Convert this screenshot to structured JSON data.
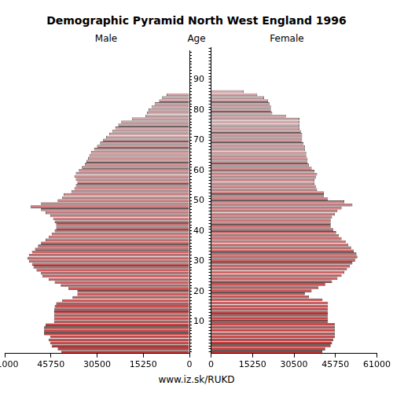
{
  "chart_data": {
    "type": "bar",
    "orientation": "horizontal",
    "title": "Demographic Pyramid North West England 1996",
    "ylabel": "Age",
    "source": "www.iz.sk/RUKD",
    "categories": [
      null,
      null,
      null,
      null,
      null,
      null,
      null,
      null,
      null,
      null,
      10,
      null,
      null,
      null,
      null,
      null,
      null,
      null,
      null,
      null,
      20,
      null,
      null,
      null,
      null,
      null,
      null,
      null,
      null,
      null,
      30,
      null,
      null,
      null,
      null,
      null,
      null,
      null,
      null,
      null,
      40,
      null,
      null,
      null,
      null,
      null,
      null,
      null,
      null,
      null,
      50,
      null,
      null,
      null,
      null,
      null,
      null,
      null,
      null,
      null,
      60,
      null,
      null,
      null,
      null,
      null,
      null,
      null,
      null,
      null,
      70,
      null,
      null,
      null,
      null,
      null,
      null,
      null,
      null,
      null,
      80,
      null,
      null,
      null,
      null,
      null,
      null,
      null,
      null,
      null,
      90,
      null,
      null,
      null,
      null,
      null,
      null,
      null,
      null,
      null
    ],
    "xlim": [
      0,
      61000
    ],
    "xticks": [
      0,
      15250,
      30500,
      45750,
      61000
    ],
    "grid": false,
    "series": [
      {
        "name": "Male",
        "color": "#cc3838",
        "values": [
          42300,
          43500,
          45500,
          46000,
          46500,
          46000,
          48000,
          48000,
          48000,
          47500,
          44700,
          44700,
          44700,
          44700,
          44700,
          44500,
          44000,
          42000,
          38600,
          37000,
          37000,
          40000,
          42500,
          44500,
          46500,
          48500,
          49000,
          50500,
          51500,
          52000,
          53000,
          53500,
          53000,
          52000,
          51000,
          50000,
          49000,
          47500,
          46500,
          45500,
          44500,
          44000,
          44000,
          44500,
          45000,
          46000,
          47500,
          49000,
          52500,
          49000,
          43500,
          42000,
          41500,
          39000,
          38000,
          37500,
          37000,
          37500,
          38000,
          37500,
          36500,
          35500,
          34500,
          34000,
          33500,
          33000,
          32500,
          31500,
          30500,
          29500,
          28500,
          27500,
          26500,
          25500,
          24500,
          23500,
          22500,
          19000,
          14500,
          14000,
          13500,
          12500,
          11500,
          10000,
          9000,
          7500,
          null,
          null,
          null,
          null,
          null,
          null,
          null,
          null,
          null,
          null,
          null,
          null,
          null,
          null
        ]
      },
      {
        "name": "Female",
        "color": "#cc3838",
        "values": [
          40900,
          42000,
          44000,
          44500,
          45000,
          45500,
          45500,
          45500,
          45500,
          45500,
          43000,
          43000,
          43000,
          43000,
          43000,
          43000,
          43000,
          41000,
          36000,
          34500,
          37000,
          39500,
          42000,
          44500,
          46500,
          48000,
          49000,
          50000,
          51000,
          52000,
          53000,
          53800,
          53500,
          52500,
          51500,
          50500,
          49500,
          48000,
          47000,
          46000,
          45000,
          44000,
          44000,
          44000,
          44500,
          45500,
          46500,
          48000,
          52000,
          49000,
          43000,
          41500,
          41500,
          39000,
          38500,
          38000,
          38000,
          38500,
          39000,
          38000,
          37000,
          36000,
          35500,
          35500,
          35000,
          35000,
          34500,
          34500,
          34000,
          33500,
          33500,
          33500,
          33000,
          32500,
          32500,
          32500,
          32500,
          27500,
          22500,
          22000,
          22000,
          21500,
          21000,
          19500,
          17000,
          12000,
          null,
          null,
          null,
          null,
          null,
          null,
          null,
          null,
          null,
          null,
          null,
          null,
          null,
          null
        ]
      }
    ]
  }
}
